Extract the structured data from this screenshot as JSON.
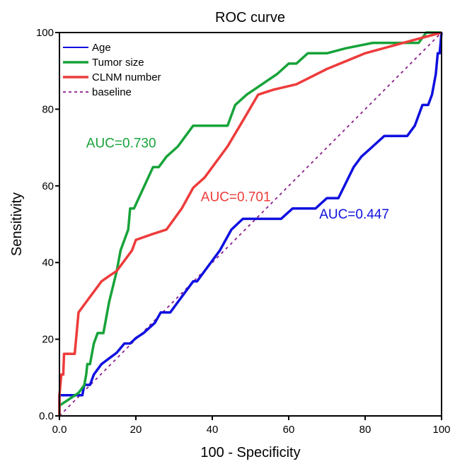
{
  "chart_data": {
    "type": "line",
    "title": "ROC curve",
    "xlabel": "100 - Specificity",
    "ylabel": "Sensitivity",
    "xlim": [
      0,
      100
    ],
    "ylim": [
      0,
      100
    ],
    "x_ticks": [
      "0.0",
      "20",
      "40",
      "60",
      "80",
      "100"
    ],
    "y_ticks": [
      "0.0",
      "20",
      "40",
      "60",
      "80",
      "100"
    ],
    "legend_position": "top-left",
    "series": [
      {
        "name": "Age",
        "color": "#1010e0",
        "dash": false,
        "auc_label": "AUC=0.447",
        "label_at": [
          68,
          51.5
        ],
        "points": [
          [
            0,
            0
          ],
          [
            0,
            5.4
          ],
          [
            3,
            5.4
          ],
          [
            6,
            5.4
          ],
          [
            6.5,
            8.1
          ],
          [
            8,
            8.1
          ],
          [
            9,
            10.8
          ],
          [
            11,
            13.5
          ],
          [
            13,
            15
          ],
          [
            15,
            16.5
          ],
          [
            17,
            18.9
          ],
          [
            18.5,
            18.9
          ],
          [
            20,
            20.3
          ],
          [
            22,
            21.6
          ],
          [
            25,
            24.3
          ],
          [
            26.5,
            27
          ],
          [
            29,
            27
          ],
          [
            31,
            29.7
          ],
          [
            35,
            35.1
          ],
          [
            36,
            35.1
          ],
          [
            38,
            37.8
          ],
          [
            40,
            40.5
          ],
          [
            42,
            43.2
          ],
          [
            45,
            48.6
          ],
          [
            48,
            51.4
          ],
          [
            52,
            51.4
          ],
          [
            58,
            51.4
          ],
          [
            61,
            54.1
          ],
          [
            67,
            54.1
          ],
          [
            70,
            56.8
          ],
          [
            73,
            56.8
          ],
          [
            77,
            64.9
          ],
          [
            79,
            67.6
          ],
          [
            82,
            70.3
          ],
          [
            85,
            73
          ],
          [
            91,
            73
          ],
          [
            93,
            75.7
          ],
          [
            95,
            81.1
          ],
          [
            96.5,
            81.1
          ],
          [
            97.5,
            83.8
          ],
          [
            98.5,
            89.2
          ],
          [
            99,
            94.6
          ],
          [
            99.5,
            94.6
          ],
          [
            100,
            100
          ]
        ]
      },
      {
        "name": "Tumor size",
        "color": "#17a339",
        "dash": false,
        "auc_label": "AUC=0.730",
        "label_at": [
          7,
          70
        ],
        "points": [
          [
            0,
            0
          ],
          [
            0,
            2.7
          ],
          [
            2,
            4
          ],
          [
            5,
            6
          ],
          [
            6.5,
            8
          ],
          [
            7,
            10.8
          ],
          [
            7.3,
            13.5
          ],
          [
            8,
            13.5
          ],
          [
            9,
            18.9
          ],
          [
            10,
            21.6
          ],
          [
            11.5,
            21.6
          ],
          [
            13,
            29.7
          ],
          [
            15,
            37.8
          ],
          [
            16,
            43.2
          ],
          [
            18,
            48.6
          ],
          [
            18.5,
            54.1
          ],
          [
            19.5,
            54.1
          ],
          [
            22,
            59.5
          ],
          [
            24.5,
            64.9
          ],
          [
            26,
            64.9
          ],
          [
            28,
            67.6
          ],
          [
            31,
            70.3
          ],
          [
            33,
            73
          ],
          [
            35,
            75.7
          ],
          [
            39,
            75.7
          ],
          [
            44,
            75.7
          ],
          [
            46,
            81.1
          ],
          [
            49,
            83.8
          ],
          [
            53,
            86.5
          ],
          [
            57,
            89.2
          ],
          [
            60,
            91.9
          ],
          [
            62,
            91.9
          ],
          [
            65,
            94.6
          ],
          [
            70,
            94.6
          ],
          [
            75,
            95.9
          ],
          [
            82,
            97.3
          ],
          [
            94,
            97.3
          ],
          [
            96,
            100
          ],
          [
            100,
            100
          ]
        ]
      },
      {
        "name": "CLNM number",
        "color": "#ee3b3b",
        "dash": false,
        "auc_label": "AUC=0.701",
        "label_at": [
          37,
          56
        ],
        "points": [
          [
            0,
            0
          ],
          [
            0,
            5.4
          ],
          [
            0.5,
            10.8
          ],
          [
            1,
            10.8
          ],
          [
            1.2,
            16.2
          ],
          [
            4,
            16.2
          ],
          [
            5,
            27
          ],
          [
            7,
            29.7
          ],
          [
            9,
            32.4
          ],
          [
            11,
            35.1
          ],
          [
            13,
            36.5
          ],
          [
            15,
            37.8
          ],
          [
            17,
            40.5
          ],
          [
            19,
            43.2
          ],
          [
            20,
            45.9
          ],
          [
            24,
            47.3
          ],
          [
            28,
            48.6
          ],
          [
            32,
            54.1
          ],
          [
            35,
            59.5
          ],
          [
            38,
            62.2
          ],
          [
            44,
            70.3
          ],
          [
            48,
            77
          ],
          [
            52,
            83.8
          ],
          [
            56,
            85.1
          ],
          [
            62,
            86.5
          ],
          [
            70,
            90.5
          ],
          [
            80,
            94.6
          ],
          [
            90,
            97.3
          ],
          [
            100,
            100
          ]
        ]
      },
      {
        "name": "baseline",
        "color": "#8b1a8b",
        "dash": true,
        "auc_label": "",
        "label_at": null,
        "points": [
          [
            0,
            0
          ],
          [
            100,
            100
          ]
        ]
      }
    ]
  }
}
